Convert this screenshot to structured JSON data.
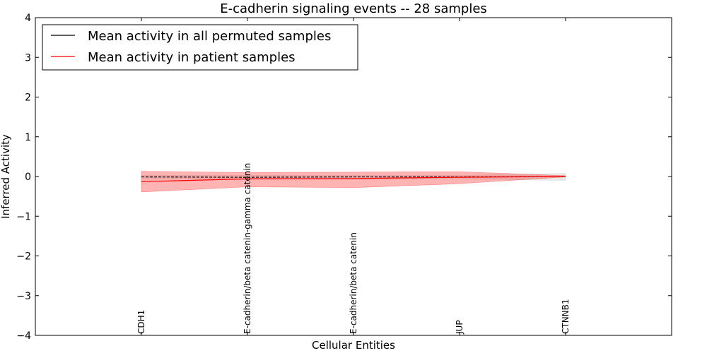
{
  "chart_data": {
    "type": "line",
    "title": "E-cadherin signaling events -- 28 samples",
    "xlabel": "Cellular Entities",
    "ylabel": "Inferred Activity",
    "ylim": [
      -4,
      4
    ],
    "yticks": [
      -4,
      -3,
      -2,
      -1,
      0,
      1,
      2,
      3,
      4
    ],
    "ytick_labels": [
      "−4",
      "−3",
      "−2",
      "−1",
      "0",
      "1",
      "2",
      "3",
      "4"
    ],
    "xlim": [
      -1,
      5
    ],
    "categories": [
      "CDH1",
      "E-cadherin/beta catenin-gamma catenin",
      "E-cadherin/beta catenin",
      "JUP",
      "CTNNB1"
    ],
    "grid": false,
    "legend_position": "top-left",
    "series": [
      {
        "name": "Mean activity in all permuted samples",
        "color": "#000000",
        "style": "dashed",
        "values": [
          -0.01,
          -0.02,
          -0.01,
          -0.01,
          0.0
        ],
        "band_upper": [
          0.03,
          0.03,
          0.03,
          0.03,
          0.08
        ],
        "band_lower": [
          -0.06,
          -0.07,
          -0.07,
          -0.06,
          -0.1
        ],
        "band_color": "#cccccc"
      },
      {
        "name": "Mean activity in patient samples",
        "color": "#ff0000",
        "style": "solid",
        "values": [
          -0.13,
          -0.06,
          -0.05,
          -0.02,
          0.0
        ],
        "band_upper": [
          0.13,
          0.1,
          0.11,
          0.12,
          0.02
        ],
        "band_lower": [
          -0.39,
          -0.26,
          -0.28,
          -0.18,
          -0.01
        ],
        "band_color": "#ff4444"
      }
    ]
  }
}
